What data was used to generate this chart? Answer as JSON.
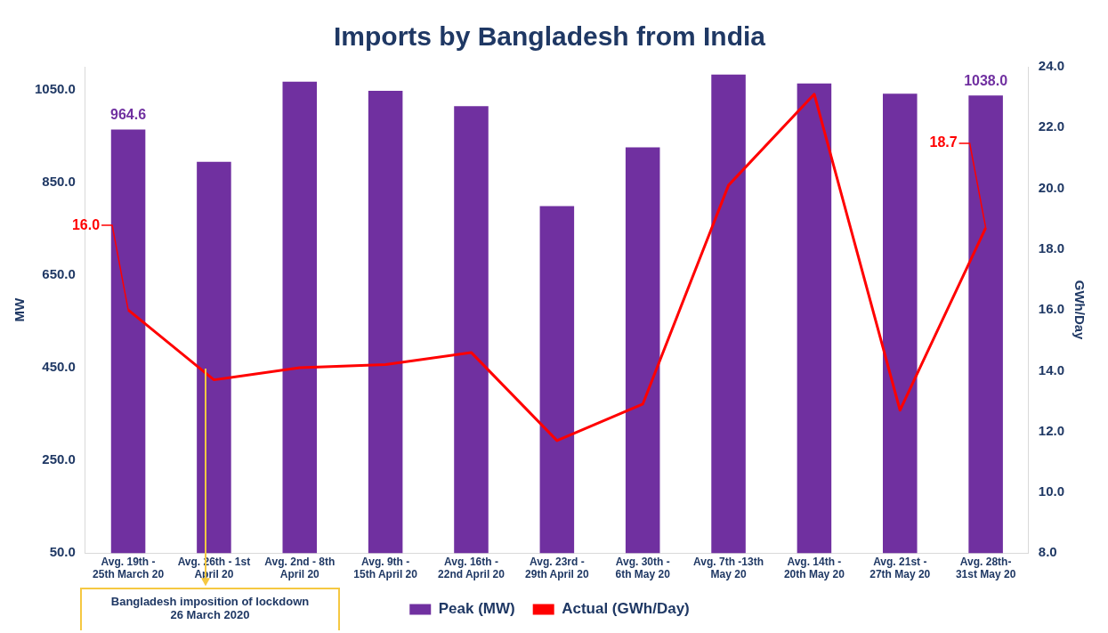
{
  "chart_data": {
    "type": "bar",
    "title": "Imports by Bangladesh from India",
    "categories": [
      "Avg. 19th -\n25th March 20",
      "Avg. 26th - 1st\nApril 20",
      "Avg. 2nd - 8th\nApril 20",
      "Avg. 9th -\n15th April 20",
      "Avg. 16th -\n22nd April 20",
      "Avg. 23rd -\n29th April 20",
      "Avg. 30th -\n6th May 20",
      "Avg. 7th -13th\nMay 20",
      "Avg. 14th -\n20th May 20",
      "Avg. 21st -\n27th May 20",
      "Avg. 28th-\n31st May 20"
    ],
    "series": [
      {
        "name": "Peak (MW)",
        "color": "#7030a0",
        "values": [
          964.6,
          895,
          1068,
          1048,
          1015,
          799,
          926,
          1083,
          1064,
          1042,
          1038.0
        ],
        "value_labels": [
          "964.6",
          null,
          null,
          null,
          null,
          null,
          null,
          null,
          null,
          null,
          "1038.0"
        ]
      },
      {
        "name": "Actual (GWh/Day)",
        "type": "line",
        "axis": "y2",
        "color": "#ff0000",
        "values": [
          16.0,
          13.7,
          14.1,
          14.2,
          14.6,
          11.7,
          12.9,
          20.1,
          23.1,
          12.7,
          18.7
        ],
        "value_labels": [
          "16.0",
          null,
          null,
          null,
          null,
          null,
          null,
          null,
          null,
          null,
          "18.7"
        ]
      }
    ],
    "ylabel": "MW",
    "y2label": "GWh/Day",
    "ylim": [
      50,
      1100
    ],
    "yticks": [
      {
        "value": 50,
        "label": "50.0"
      },
      {
        "value": 250,
        "label": "250.0"
      },
      {
        "value": 450,
        "label": "450.0"
      },
      {
        "value": 650,
        "label": "650.0"
      },
      {
        "value": 850,
        "label": "850.0"
      },
      {
        "value": 1050,
        "label": "1050.0"
      }
    ],
    "y2lim": [
      8,
      24
    ],
    "y2ticks": [
      {
        "value": 8,
        "label": "8.0"
      },
      {
        "value": 10,
        "label": "10.0"
      },
      {
        "value": 12,
        "label": "12.0"
      },
      {
        "value": 14,
        "label": "14.0"
      },
      {
        "value": 16,
        "label": "16.0"
      },
      {
        "value": 18,
        "label": "18.0"
      },
      {
        "value": 20,
        "label": "20.0"
      },
      {
        "value": 22,
        "label": "22.0"
      },
      {
        "value": 24,
        "label": "24.0"
      }
    ],
    "grid": false,
    "legend": "bottom",
    "marker": "none",
    "line_style": "solid",
    "annotations": [
      "Bangladesh imposition of lockdown\n26 March 2020"
    ]
  }
}
